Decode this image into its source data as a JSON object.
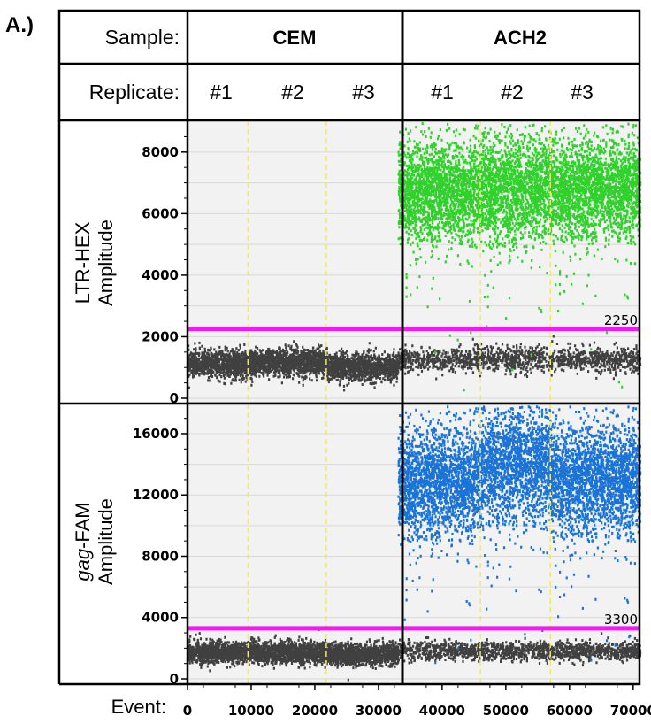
{
  "panel_label": "A.)",
  "header": {
    "sample_label": "Sample:",
    "replicate_label": "Replicate:",
    "samples": [
      "CEM",
      "ACH2"
    ],
    "replicates": [
      "#1",
      "#2",
      "#3",
      "#1",
      "#2",
      "#3"
    ]
  },
  "event_label": "Event:",
  "colors": {
    "hex_positive": "#2fd12a",
    "fam_positive": "#1a73d6",
    "negative_droplets": "#404040",
    "threshold": "#ff10ff",
    "plot_background": "#f2f2f2",
    "replicate_divider": "#f0ea60"
  },
  "chart_data": [
    {
      "type": "scatter",
      "name": "LTR-HEX",
      "ylabel_line1": "LTR-HEX",
      "ylabel_line2": "Amplitude",
      "ylim": [
        0,
        8800
      ],
      "yticks": [
        0,
        2000,
        4000,
        6000,
        8000
      ],
      "ytick_labels": [
        "0",
        "2000",
        "4000",
        "6000",
        "8000"
      ],
      "threshold": 2250,
      "threshold_label": "2250",
      "grid": true,
      "clusters": [
        {
          "sample": "CEM",
          "x_range": [
            0,
            9500
          ],
          "amplitude": 1150,
          "spread": 220
        },
        {
          "sample": "CEM",
          "x_range": [
            9500,
            21800
          ],
          "amplitude": 1200,
          "spread": 220
        },
        {
          "sample": "CEM",
          "x_range": [
            21800,
            33000
          ],
          "amplitude": 1050,
          "spread": 220
        },
        {
          "sample": "ACH2",
          "x_range": [
            33000,
            71000
          ],
          "amplitude": 1300,
          "spread": 200,
          "sparse": true
        },
        {
          "sample": "ACH2",
          "x_range": [
            33000,
            46000
          ],
          "amplitude": 6800,
          "spread": 800,
          "positive": true
        },
        {
          "sample": "ACH2",
          "x_range": [
            46000,
            57000
          ],
          "amplitude": 6900,
          "spread": 900,
          "positive": true
        },
        {
          "sample": "ACH2",
          "x_range": [
            57000,
            71000
          ],
          "amplitude": 6900,
          "spread": 800,
          "positive": true
        }
      ]
    },
    {
      "type": "scatter",
      "name": "gag-FAM",
      "ylabel_line1_italic": "gag",
      "ylabel_line1_rest": "-FAM",
      "ylabel_line2": "Amplitude",
      "ylim": [
        0,
        17500
      ],
      "yticks": [
        0,
        4000,
        8000,
        12000,
        16000
      ],
      "ytick_labels": [
        "0",
        "4000",
        "8000",
        "12000",
        "16000"
      ],
      "threshold": 3300,
      "threshold_label": "3300",
      "grid": true,
      "clusters": [
        {
          "sample": "CEM",
          "x_range": [
            0,
            9500
          ],
          "amplitude": 1800,
          "spread": 350
        },
        {
          "sample": "CEM",
          "x_range": [
            9500,
            21800
          ],
          "amplitude": 1800,
          "spread": 350
        },
        {
          "sample": "CEM",
          "x_range": [
            21800,
            33000
          ],
          "amplitude": 1700,
          "spread": 350
        },
        {
          "sample": "ACH2",
          "x_range": [
            33000,
            71000
          ],
          "amplitude": 1900,
          "spread": 300,
          "sparse": true
        },
        {
          "sample": "ACH2",
          "x_range": [
            33000,
            46000
          ],
          "amplitude": 13000,
          "spread": 1800,
          "positive": true
        },
        {
          "sample": "ACH2",
          "x_range": [
            46000,
            57000
          ],
          "amplitude": 14200,
          "spread": 1900,
          "positive": true
        },
        {
          "sample": "ACH2",
          "x_range": [
            57000,
            71000
          ],
          "amplitude": 13200,
          "spread": 1800,
          "positive": true
        }
      ]
    }
  ],
  "x_axis": {
    "xlim": [
      0,
      71000
    ],
    "sample_boundary": 33000,
    "replicate_boundaries": [
      9500,
      21800,
      46000,
      57000
    ],
    "ticks": [
      0,
      10000,
      20000,
      30000,
      40000,
      50000,
      60000,
      70000
    ],
    "tick_labels": [
      "0",
      "10000",
      "20000",
      "30000",
      "40000",
      "50000",
      "60000",
      "70000"
    ]
  }
}
